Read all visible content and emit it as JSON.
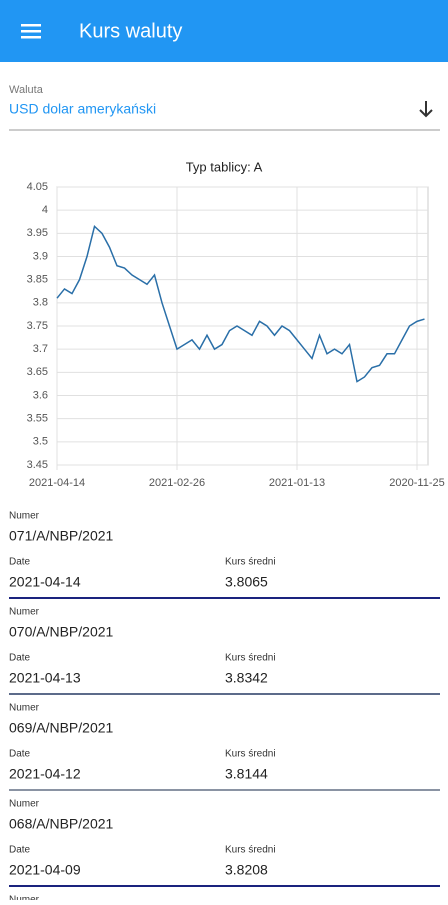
{
  "app_bar": {
    "title": "Kurs waluty"
  },
  "currency": {
    "label": "Waluta",
    "value": "USD dolar amerykański"
  },
  "chart_data": {
    "type": "line",
    "title": "Typ tablicy: A",
    "categories": [
      "2021-04-14",
      null,
      null,
      null,
      null,
      null,
      null,
      null,
      null,
      null,
      null,
      null,
      null,
      null,
      null,
      null,
      "2021-02-26",
      null,
      null,
      null,
      null,
      null,
      null,
      null,
      null,
      null,
      null,
      null,
      null,
      null,
      null,
      null,
      "2021-01-13",
      null,
      null,
      null,
      null,
      null,
      null,
      null,
      null,
      null,
      null,
      null,
      null,
      null,
      null,
      null,
      "2020-11-25",
      null
    ],
    "series": [
      {
        "color": "#2a6fa8",
        "values": [
          3.81,
          3.83,
          3.82,
          3.85,
          3.9,
          3.965,
          3.95,
          3.92,
          3.88,
          3.875,
          3.86,
          3.85,
          3.84,
          3.86,
          3.8,
          3.75,
          3.7,
          3.71,
          3.72,
          3.7,
          3.73,
          3.7,
          3.71,
          3.74,
          3.75,
          3.74,
          3.73,
          3.76,
          3.75,
          3.73,
          3.75,
          3.74,
          3.72,
          3.7,
          3.68,
          3.73,
          3.69,
          3.7,
          3.69,
          3.71,
          3.63,
          3.64,
          3.66,
          3.665,
          3.69,
          3.69,
          3.72,
          3.75,
          3.76,
          3.765
        ]
      }
    ],
    "ylim": [
      3.45,
      4.05
    ],
    "yticks": [
      3.45,
      3.5,
      3.55,
      3.6,
      3.65,
      3.7,
      3.75,
      3.8,
      3.85,
      3.9,
      3.95,
      4,
      4.05
    ],
    "grid": true
  },
  "list": {
    "labels": {
      "number": "Numer",
      "date": "Date",
      "rate": "Kurs średni"
    },
    "items": [
      {
        "number": "071/A/NBP/2021",
        "date": "2021-04-14",
        "rate": "3.8065"
      },
      {
        "number": "070/A/NBP/2021",
        "date": "2021-04-13",
        "rate": "3.8342"
      },
      {
        "number": "069/A/NBP/2021",
        "date": "2021-04-12",
        "rate": "3.8144"
      },
      {
        "number": "068/A/NBP/2021",
        "date": "2021-04-09",
        "rate": "3.8208"
      }
    ]
  }
}
